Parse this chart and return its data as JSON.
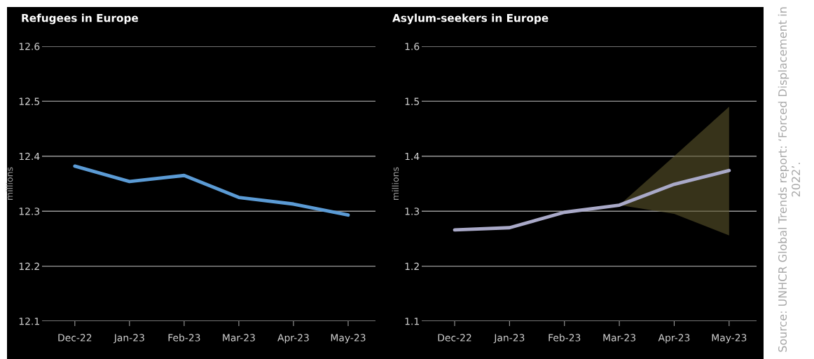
{
  "chart_data": [
    {
      "type": "line",
      "title": "Refugees in Europe",
      "ylabel": "millions",
      "categories": [
        "Dec-22",
        "Jan-23",
        "Feb-23",
        "Mar-23",
        "Apr-23",
        "May-23"
      ],
      "series": [
        {
          "color": "#5b9bd5",
          "values": [
            12.382,
            12.354,
            12.365,
            12.325,
            12.313,
            12.293
          ]
        }
      ],
      "ylim": [
        12.1,
        12.6
      ],
      "yticks": [
        12.1,
        12.2,
        12.3,
        12.4,
        12.5,
        12.6
      ],
      "grid": "y"
    },
    {
      "type": "line",
      "title": "Asylum-seekers in Europe",
      "ylabel": "millions",
      "categories": [
        "Dec-22",
        "Jan-23",
        "Feb-23",
        "Mar-23",
        "Apr-23",
        "May-23"
      ],
      "series": [
        {
          "color": "#a9a9c8",
          "values": [
            1.266,
            1.27,
            1.298,
            1.311,
            1.349,
            1.374
          ],
          "lower": [
            null,
            null,
            null,
            1.311,
            1.295,
            1.256
          ],
          "upper": [
            null,
            null,
            null,
            1.311,
            1.4,
            1.49
          ]
        }
      ],
      "ylim": [
        1.1,
        1.6
      ],
      "yticks": [
        1.1,
        1.2,
        1.3,
        1.4,
        1.5,
        1.6
      ],
      "grid": "y",
      "annotations": [
        "Source: UNHCR Global Trends report: ‘Forced Displacement in 2022’."
      ]
    }
  ]
}
